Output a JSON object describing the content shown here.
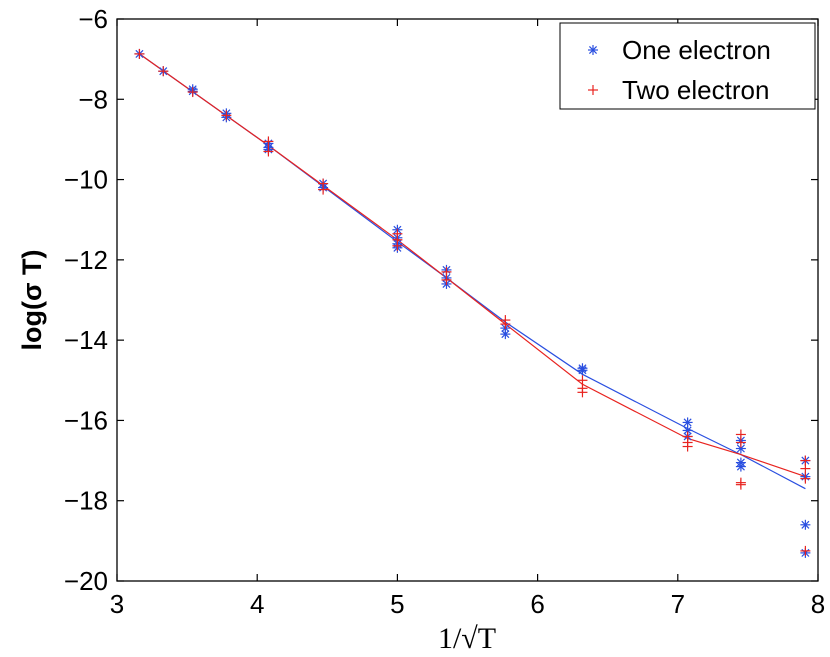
{
  "chart_data": {
    "type": "scatter",
    "title": "",
    "xlabel": "1/√T",
    "ylabel": "log(σ T)",
    "xlim": [
      3,
      8
    ],
    "ylim": [
      -20,
      -6
    ],
    "xticks": [
      3,
      4,
      5,
      6,
      7,
      8
    ],
    "yticks": [
      -20,
      -18,
      -16,
      -14,
      -12,
      -10,
      -8,
      -6
    ],
    "grid": false,
    "legend_position": "top-right",
    "series": [
      {
        "name": "One electron",
        "marker": "asterisk",
        "color": "#2a4fe0",
        "points": [
          [
            3.16,
            -6.87
          ],
          [
            3.33,
            -7.3
          ],
          [
            3.54,
            -7.8
          ],
          [
            3.54,
            -7.75
          ],
          [
            3.78,
            -8.35
          ],
          [
            3.78,
            -8.45
          ],
          [
            4.08,
            -9.1
          ],
          [
            4.08,
            -9.2
          ],
          [
            4.08,
            -9.25
          ],
          [
            4.47,
            -10.1
          ],
          [
            4.47,
            -10.2
          ],
          [
            5.0,
            -11.25
          ],
          [
            5.0,
            -11.45
          ],
          [
            5.0,
            -11.6
          ],
          [
            5.0,
            -11.7
          ],
          [
            5.35,
            -12.25
          ],
          [
            5.35,
            -12.45
          ],
          [
            5.35,
            -12.6
          ],
          [
            5.77,
            -13.7
          ],
          [
            5.77,
            -13.85
          ],
          [
            6.32,
            -14.7
          ],
          [
            6.32,
            -14.75
          ],
          [
            7.07,
            -16.05
          ],
          [
            7.07,
            -16.25
          ],
          [
            7.07,
            -16.4
          ],
          [
            7.45,
            -16.5
          ],
          [
            7.45,
            -16.7
          ],
          [
            7.45,
            -17.05
          ],
          [
            7.45,
            -17.15
          ],
          [
            7.91,
            -17.0
          ],
          [
            7.91,
            -17.4
          ],
          [
            7.91,
            -18.6
          ],
          [
            7.91,
            -19.3
          ]
        ],
        "fit": [
          [
            3.16,
            -6.87
          ],
          [
            4.08,
            -9.15
          ],
          [
            5.0,
            -11.55
          ],
          [
            5.35,
            -12.45
          ],
          [
            5.77,
            -13.55
          ],
          [
            6.32,
            -14.85
          ],
          [
            7.07,
            -16.2
          ],
          [
            7.45,
            -16.85
          ],
          [
            7.91,
            -17.7
          ]
        ]
      },
      {
        "name": "Two electron",
        "marker": "plus",
        "color": "#e8231f",
        "points": [
          [
            3.16,
            -6.87
          ],
          [
            3.33,
            -7.3
          ],
          [
            3.54,
            -7.82
          ],
          [
            3.78,
            -8.4
          ],
          [
            4.08,
            -9.05
          ],
          [
            4.08,
            -9.3
          ],
          [
            4.47,
            -10.1
          ],
          [
            4.47,
            -10.25
          ],
          [
            5.0,
            -11.35
          ],
          [
            5.0,
            -11.5
          ],
          [
            5.0,
            -11.65
          ],
          [
            5.35,
            -12.3
          ],
          [
            5.35,
            -12.5
          ],
          [
            5.77,
            -13.5
          ],
          [
            5.77,
            -13.6
          ],
          [
            6.32,
            -15.0
          ],
          [
            6.32,
            -15.2
          ],
          [
            6.32,
            -15.3
          ],
          [
            7.07,
            -16.4
          ],
          [
            7.07,
            -16.55
          ],
          [
            7.07,
            -16.65
          ],
          [
            7.45,
            -16.35
          ],
          [
            7.45,
            -16.55
          ],
          [
            7.45,
            -17.55
          ],
          [
            7.45,
            -17.6
          ],
          [
            7.91,
            -17.0
          ],
          [
            7.91,
            -17.2
          ],
          [
            7.91,
            -17.45
          ],
          [
            7.91,
            -19.25
          ]
        ],
        "fit": [
          [
            3.16,
            -6.87
          ],
          [
            4.08,
            -9.15
          ],
          [
            5.0,
            -11.5
          ],
          [
            5.35,
            -12.45
          ],
          [
            5.77,
            -13.6
          ],
          [
            6.32,
            -15.1
          ],
          [
            7.07,
            -16.45
          ],
          [
            7.45,
            -16.85
          ],
          [
            7.91,
            -17.4
          ]
        ]
      }
    ]
  }
}
